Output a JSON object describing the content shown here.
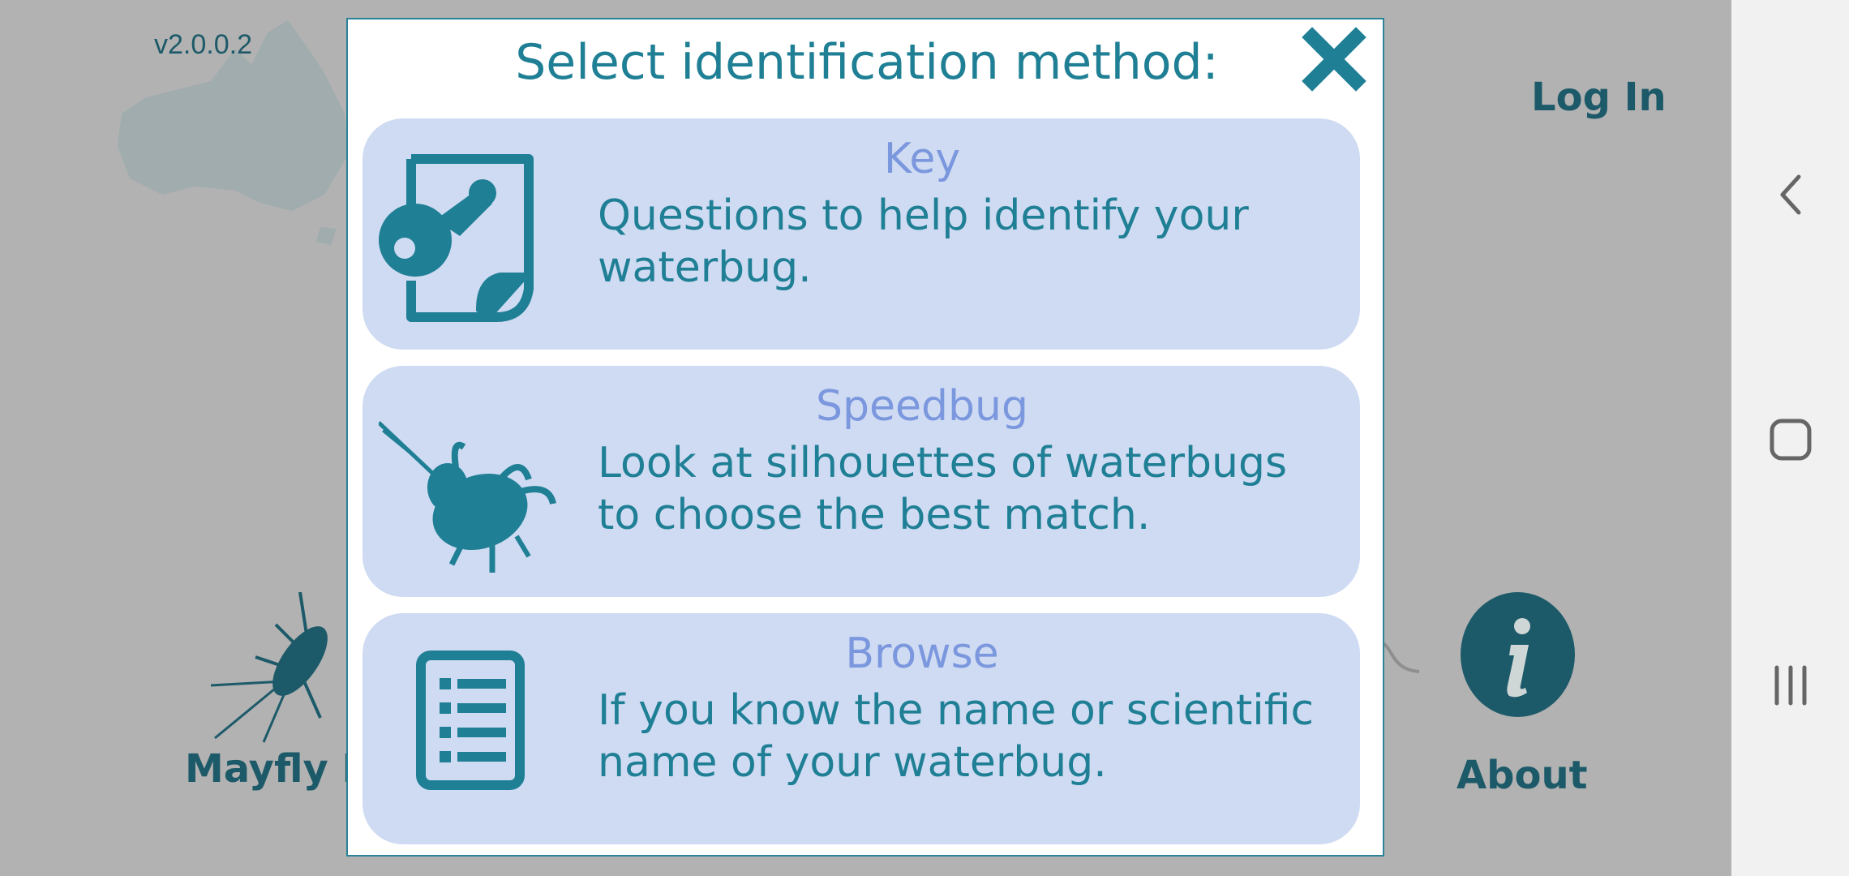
{
  "app": {
    "version": "v2.0.0.2",
    "login_label": "Log In",
    "mayfly_label": "Mayfly M",
    "about_label": "About",
    "about_icon_glyph": "i"
  },
  "dialog": {
    "title": "Select identification method:",
    "close_icon": "close-x-icon",
    "options": [
      {
        "title": "Key",
        "description": "Questions to help identify your waterbug.",
        "icon": "key-document-icon"
      },
      {
        "title": "Speedbug",
        "description": "Look at silhouettes of waterbugs to choose the best match.",
        "icon": "waterbug-silhouette-icon"
      },
      {
        "title": "Browse",
        "description": "If you know the name or scientific name of your waterbug.",
        "icon": "list-document-icon"
      }
    ]
  },
  "navbar": {
    "buttons": [
      "back-icon",
      "home-icon",
      "recents-icon"
    ]
  },
  "colors": {
    "teal": "#1f7f95",
    "dark_teal": "#1d5a69",
    "option_bg": "#cfdbf2",
    "option_title": "#7b97de",
    "overlay_grey": "#b2b2b2"
  }
}
